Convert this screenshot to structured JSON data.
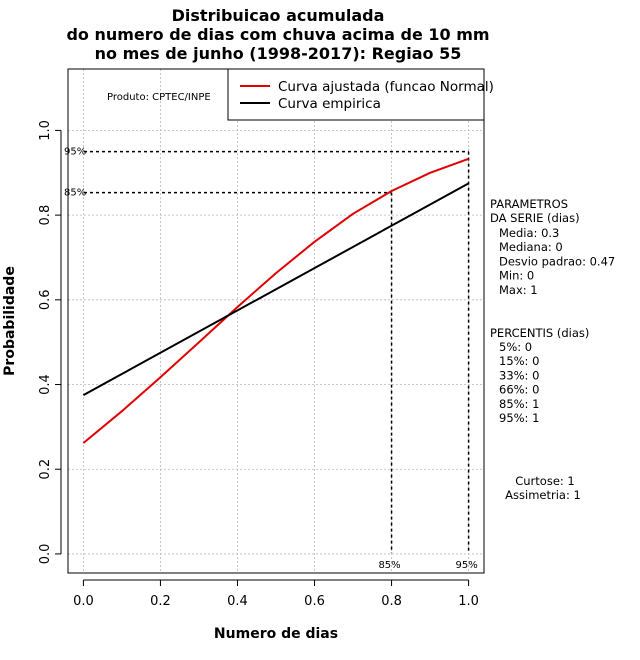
{
  "chart_data": {
    "type": "line",
    "title_lines": [
      "Distribuicao acumulada",
      "do numero de dias com chuva acima de 10 mm",
      "no mes de junho (1998-2017): Regiao 55"
    ],
    "xlabel": "Numero de dias",
    "ylabel": "Probabilidade",
    "xlim": [
      -0.04,
      1.04
    ],
    "ylim": [
      -0.045,
      1.145
    ],
    "x_ticks": [
      0.0,
      0.2,
      0.4,
      0.6,
      0.8,
      1.0
    ],
    "x_tick_labels": [
      "0.0",
      "0.2",
      "0.4",
      "0.6",
      "0.8",
      "1.0"
    ],
    "y_ticks": [
      0.0,
      0.2,
      0.4,
      0.6,
      0.8,
      1.0
    ],
    "y_tick_labels": [
      "0.0",
      "0.2",
      "0.4",
      "0.6",
      "0.8",
      "1.0"
    ],
    "grid": true,
    "legend_position": "top-right",
    "series": [
      {
        "name": "Curva ajustada (funcao Normal)",
        "color": "#e00000",
        "x": [
          0.0,
          0.1,
          0.2,
          0.3,
          0.4,
          0.5,
          0.6,
          0.7,
          0.8,
          0.9,
          1.0
        ],
        "y": [
          0.262,
          0.337,
          0.417,
          0.5,
          0.583,
          0.663,
          0.737,
          0.803,
          0.857,
          0.9,
          0.933
        ]
      },
      {
        "name": "Curva empirica",
        "color": "#000000",
        "x": [
          0.0,
          1.0
        ],
        "y": [
          0.375,
          0.875
        ]
      }
    ],
    "reference_lines": [
      {
        "label": "85%",
        "x": 0.8,
        "y": 0.853
      },
      {
        "label": "95%",
        "x": 1.0,
        "y": 0.95
      }
    ],
    "annotations": {
      "produto": "Produto: CPTEC/INPE",
      "parametros_title": [
        "PARAMETROS",
        "DA SERIE (dias)"
      ],
      "parametros": [
        "Media: 0.3",
        "Mediana: 0",
        "Desvio padrao: 0.47",
        "Min: 0",
        "Max: 1"
      ],
      "percentis_title": "PERCENTIS (dias)",
      "percentis": [
        "5%: 0",
        "15%: 0",
        "33%: 0",
        "66%: 0",
        "85%: 1",
        "95%: 1"
      ],
      "curtose": "Curtose: 1",
      "assimetria": "Assimetria: 1"
    }
  }
}
